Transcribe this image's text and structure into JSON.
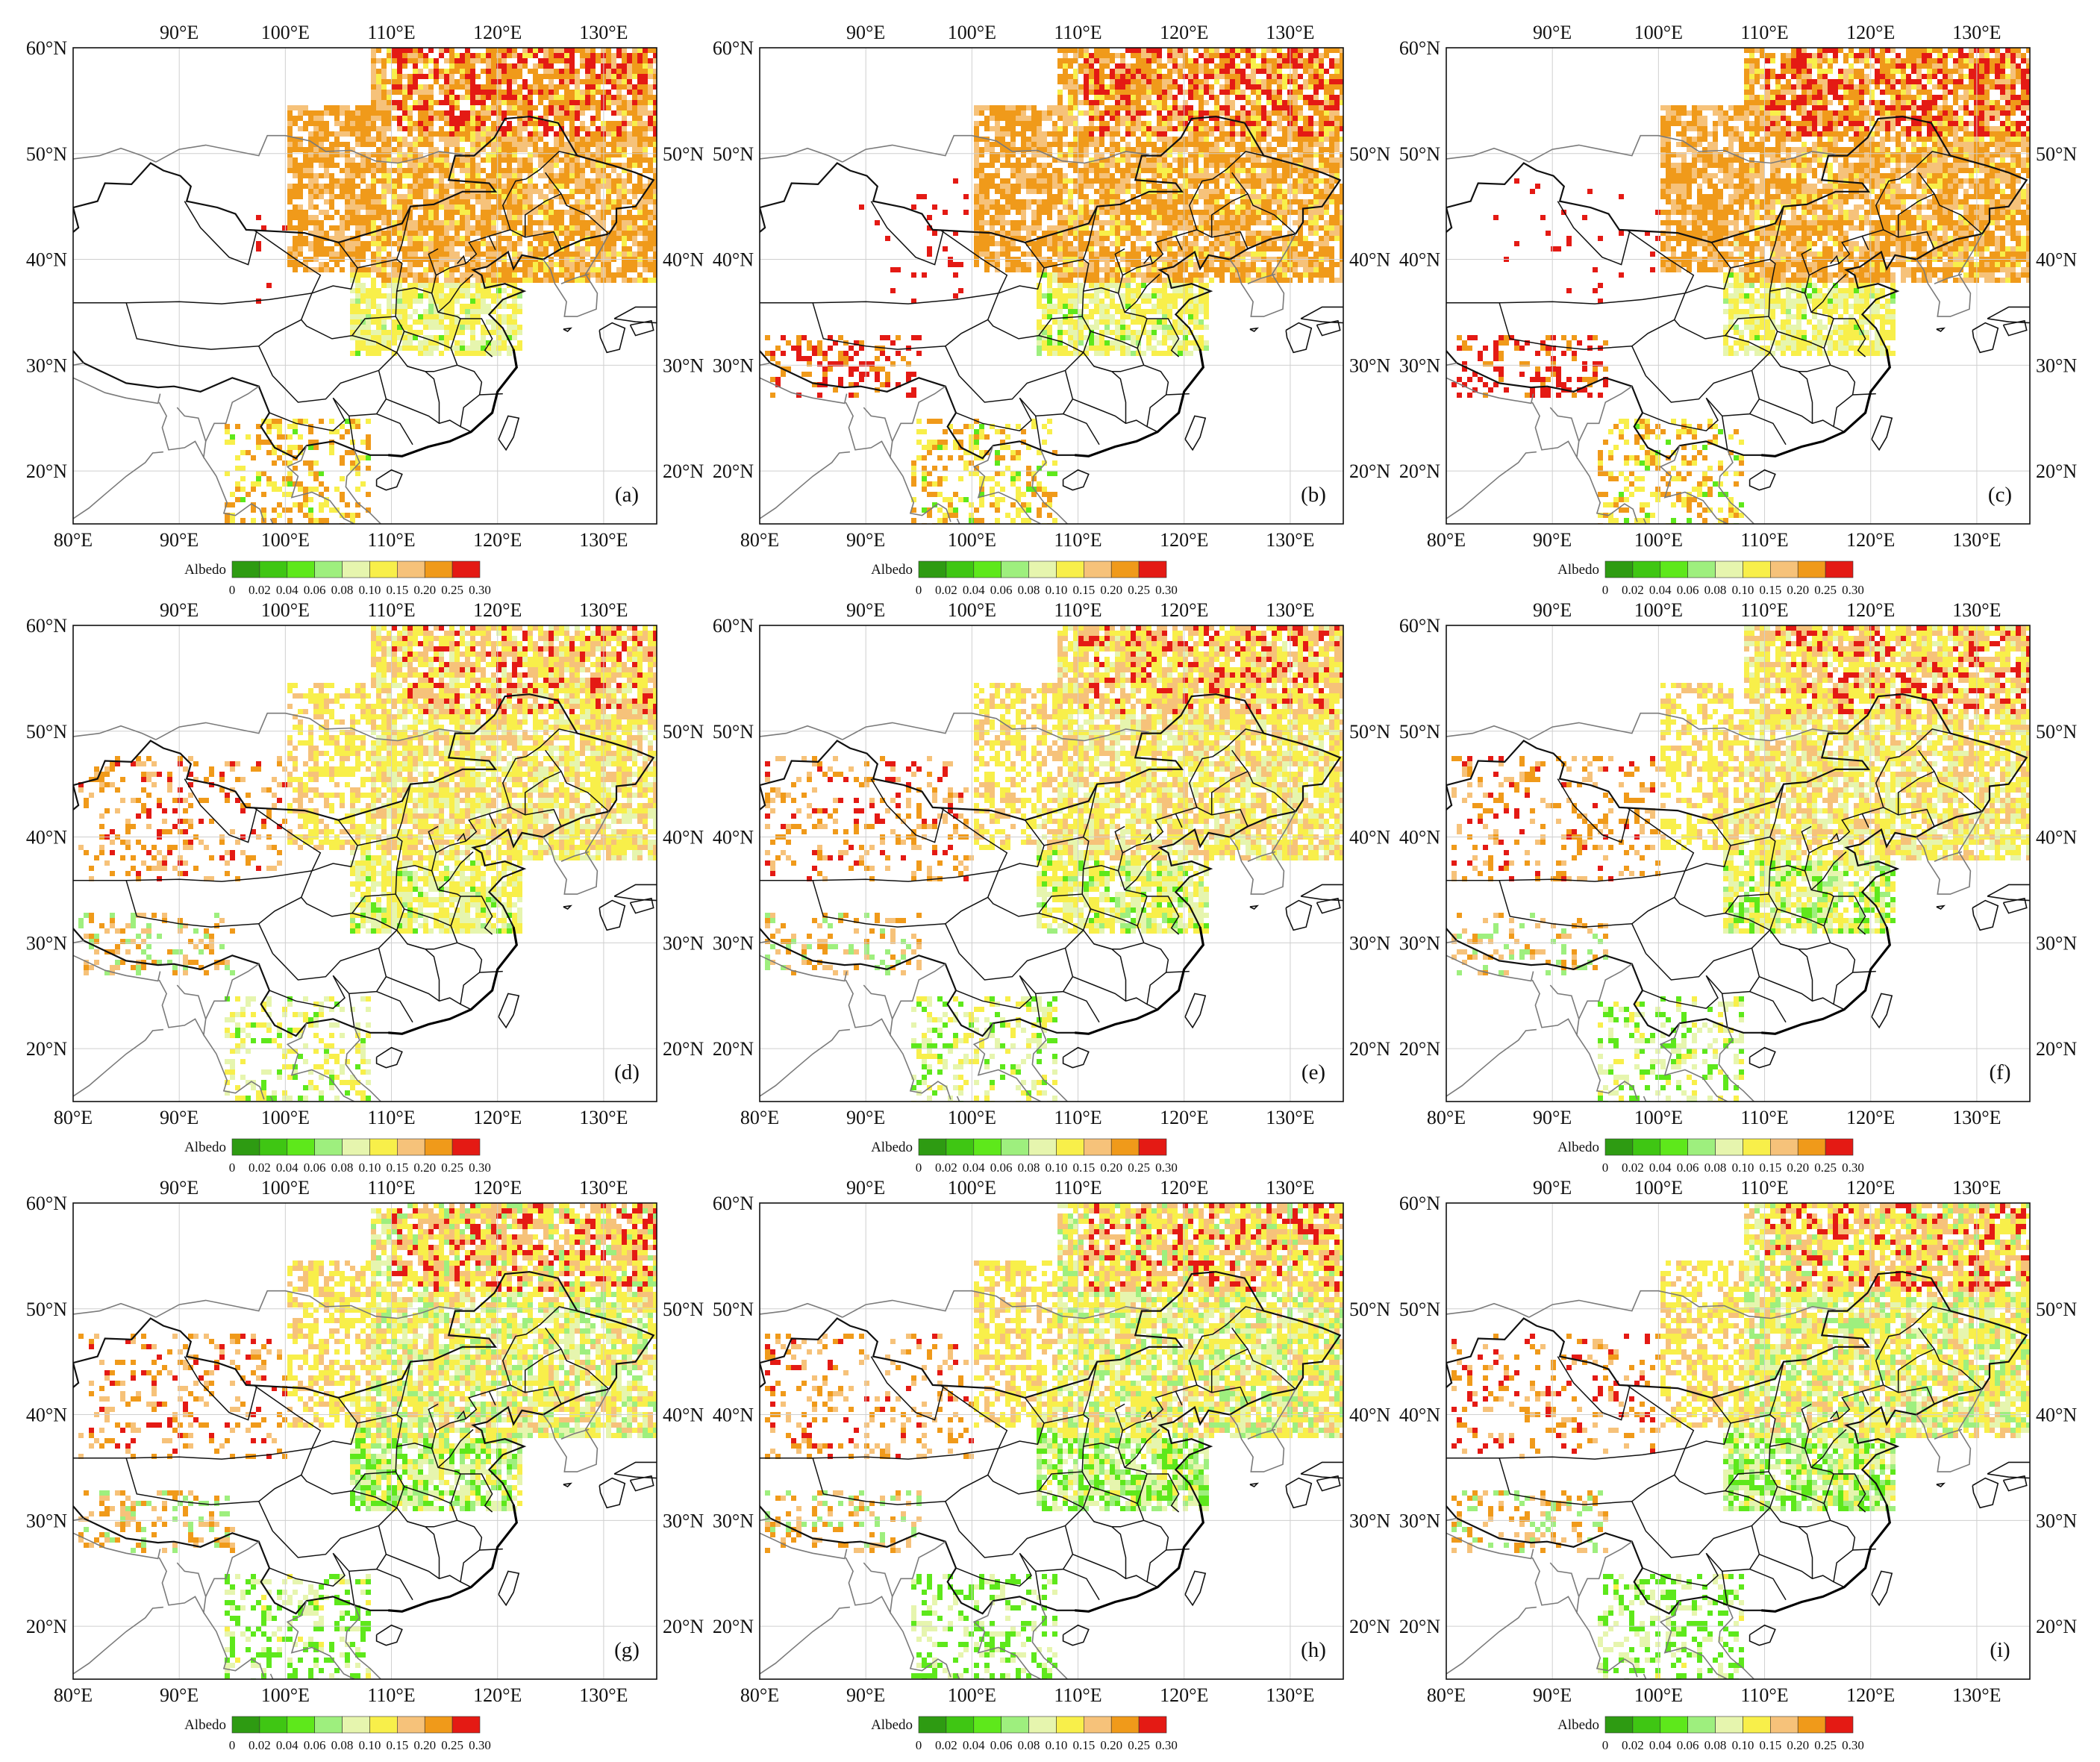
{
  "figure": {
    "panels": [
      {
        "label": "(a)"
      },
      {
        "label": "(b)"
      },
      {
        "label": "(c)"
      },
      {
        "label": "(d)"
      },
      {
        "label": "(e)"
      },
      {
        "label": "(f)"
      },
      {
        "label": "(g)"
      },
      {
        "label": "(h)"
      },
      {
        "label": "(i)"
      }
    ],
    "lon_top_labels": [
      "90°E",
      "100°E",
      "110°E",
      "120°E",
      "130°E"
    ],
    "lon_bottom_labels": [
      "80°E",
      "90°E",
      "100°E",
      "110°E",
      "120°E",
      "130°E"
    ],
    "lat_left_labels": [
      "60°N",
      "50°N",
      "40°N",
      "30°N",
      "20°N"
    ],
    "lat_right_labels": [
      "50°N",
      "40°N",
      "30°N",
      "20°N"
    ],
    "extent": {
      "lon": [
        80,
        135
      ],
      "lat": [
        15,
        60
      ]
    },
    "colorbar": {
      "title": "Albedo",
      "ticks": [
        "0",
        "0.02",
        "0.04",
        "0.06",
        "0.08",
        "0.10",
        "0.15",
        "0.20",
        "0.25",
        "0.30"
      ],
      "colors": [
        "#2e9b12",
        "#3fc613",
        "#5ee81b",
        "#9eef7e",
        "#e6f5ae",
        "#f8ef4a",
        "#f6c27a",
        "#f09a1a",
        "#e41a14"
      ]
    },
    "colors": {
      "green_dark": "#2e9b12",
      "green": "#5ee81b",
      "light_green": "#9eef7e",
      "pale_yellow": "#e6f5ae",
      "yellow": "#f8ef4a",
      "tan": "#f6c27a",
      "orange": "#f09a1a",
      "red": "#e41a14",
      "border": "#111111",
      "coast": "#7a7a7a",
      "grid": "#cfcfcf"
    }
  }
}
